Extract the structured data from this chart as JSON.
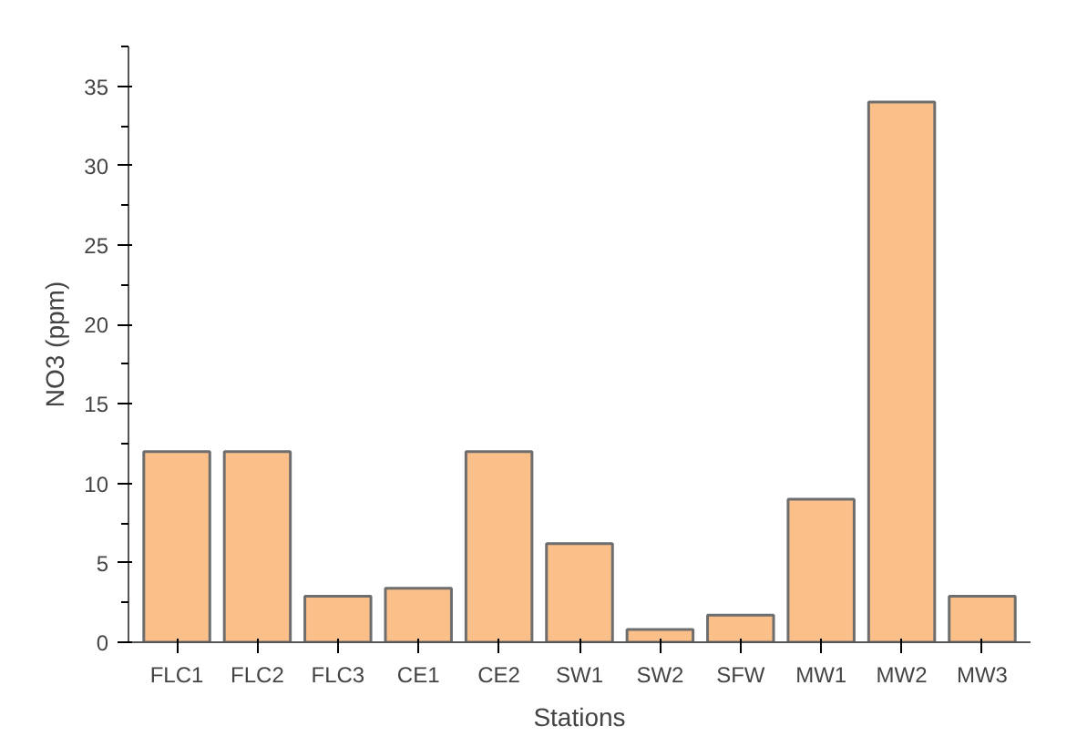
{
  "chart_data": {
    "type": "bar",
    "xlabel": "Stations",
    "ylabel": "NO3 (ppm)",
    "categories": [
      "FLC1",
      "FLC2",
      "FLC3",
      "CE1",
      "CE2",
      "SW1",
      "SW2",
      "SFW",
      "MW1",
      "MW2",
      "MW3"
    ],
    "values": [
      12.0,
      12.0,
      2.9,
      3.4,
      12.0,
      6.2,
      0.8,
      1.7,
      9.0,
      34.0,
      2.9
    ],
    "color": "#fbbf8a",
    "ylim": [
      0,
      37.5
    ],
    "yticks": [
      0,
      5,
      10,
      15,
      20,
      25,
      30,
      35
    ],
    "grid": false
  }
}
